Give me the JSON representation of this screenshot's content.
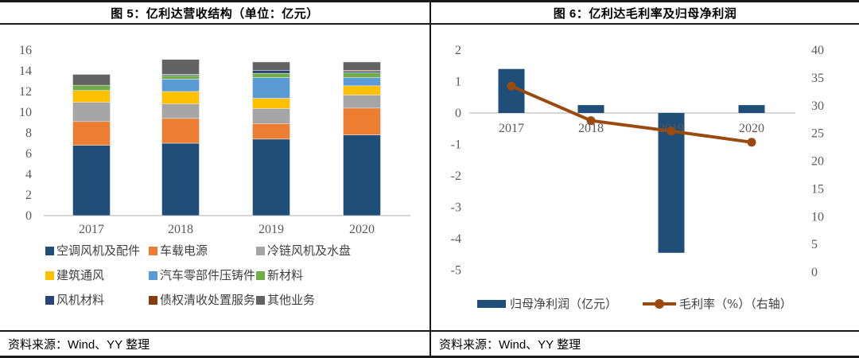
{
  "figure": {
    "left": {
      "title": "图 5：亿利达营收结构（单位：亿元）",
      "source": "资料来源：Wind、YY 整理"
    },
    "right": {
      "title": "图 6：亿利达毛利率及归母净利润",
      "source": "资料来源：Wind、YY 整理"
    }
  },
  "colors": {
    "border": "#1a1a1a",
    "axis_text": "#595959",
    "legend_text": "#3f3f3f",
    "baseline": "#c9c9c9",
    "bar_blue": "#1F4E79",
    "line_brown": "#9A4A0F"
  },
  "chart_data": [
    {
      "type": "bar",
      "stacked": true,
      "title": "图 5：亿利达营收结构（单位：亿元）",
      "categories": [
        "2017",
        "2018",
        "2019",
        "2020"
      ],
      "series": [
        {
          "name": "空调风机及配件",
          "color": "#1F4E79",
          "values": [
            6.8,
            7.0,
            7.4,
            7.8
          ]
        },
        {
          "name": "车载电源",
          "color": "#ED7D31",
          "values": [
            2.3,
            2.4,
            1.5,
            2.6
          ]
        },
        {
          "name": "冷链风机及水盘",
          "color": "#A5A5A5",
          "values": [
            1.85,
            1.4,
            1.45,
            1.25
          ]
        },
        {
          "name": "建筑通风",
          "color": "#FFC000",
          "values": [
            1.15,
            1.2,
            1.0,
            0.9
          ]
        },
        {
          "name": "汽车零部件压铸件",
          "color": "#5B9BD5",
          "values": [
            0,
            1.2,
            2.0,
            0.8
          ]
        },
        {
          "name": "新材料",
          "color": "#70AD47",
          "values": [
            0.5,
            0.35,
            0.4,
            0.45
          ]
        },
        {
          "name": "风机材料",
          "color": "#264478",
          "values": [
            0,
            0.1,
            0.3,
            0.15
          ]
        },
        {
          "name": "债权清收处置服务",
          "color": "#843C0C",
          "values": [
            0,
            0,
            0,
            0.1
          ]
        },
        {
          "name": "其他业务",
          "color": "#636363",
          "values": [
            1.05,
            1.45,
            0.8,
            0.8
          ]
        }
      ],
      "totals": [
        13.65,
        15.1,
        14.85,
        14.85
      ],
      "ylim": [
        0,
        16
      ],
      "ytick_step": 2,
      "grid": false,
      "legend_position": "bottom"
    },
    {
      "type": "bar+line",
      "title": "图 6：亿利达毛利率及归母净利润",
      "categories": [
        "2017",
        "2018",
        "2019",
        "2020"
      ],
      "bar_series": {
        "name": "归母净利润（亿元）",
        "axis": "left",
        "color": "#1F4E79",
        "values": [
          1.4,
          0.25,
          -4.45,
          0.25
        ]
      },
      "line_series": {
        "name": "毛利率（%）（右轴）",
        "axis": "right",
        "color": "#9A4A0F",
        "values": [
          33.5,
          27.3,
          25.4,
          23.4
        ]
      },
      "left_ylim": [
        -5,
        2
      ],
      "left_ytick_step": 1,
      "right_ylim": [
        0,
        40
      ],
      "right_ytick_step": 5,
      "grid": false,
      "legend_position": "bottom"
    }
  ]
}
